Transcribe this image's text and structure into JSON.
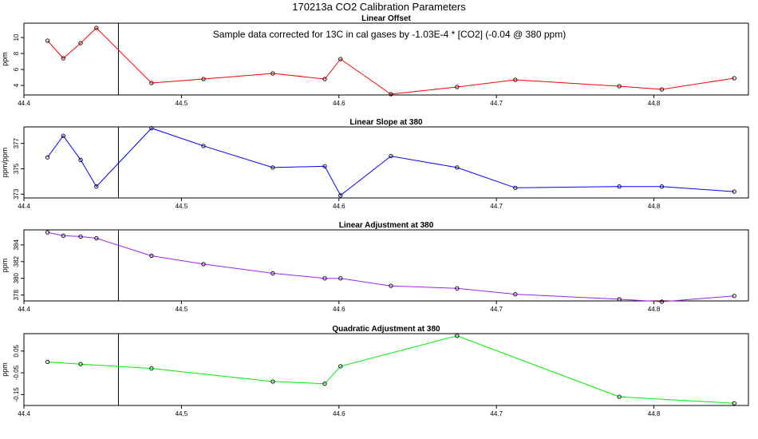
{
  "page": {
    "title": "170213a   CO2 Calibration Parameters",
    "note": "Sample data corrected for 13C in cal gases by -1.03E-4 * [CO2] (-0.04 @ 380 ppm)"
  },
  "chart_data": [
    {
      "type": "line",
      "title": "Linear Offset",
      "ylabel": "ppm",
      "color": "#ff0000",
      "xlim": [
        44.4,
        44.86
      ],
      "ylim": [
        2.8,
        11.8
      ],
      "xticks": [
        44.4,
        44.5,
        44.6,
        44.7,
        44.8
      ],
      "yticks": [
        4,
        6,
        8,
        10
      ],
      "vline": 44.46,
      "x": [
        44.415,
        44.425,
        44.436,
        44.446,
        44.481,
        44.514,
        44.558,
        44.591,
        44.601,
        44.633,
        44.675,
        44.712,
        44.778,
        44.805,
        44.851
      ],
      "y": [
        9.6,
        7.4,
        9.3,
        11.2,
        4.3,
        4.8,
        5.5,
        4.8,
        7.3,
        2.9,
        3.8,
        4.7,
        3.9,
        3.5,
        4.9
      ]
    },
    {
      "type": "line",
      "title": "Linear Slope at 380",
      "ylabel": "ppm/ppm",
      "color": "#0000ff",
      "xlim": [
        44.4,
        44.86
      ],
      "ylim": [
        372.7,
        378.3
      ],
      "xticks": [
        44.4,
        44.5,
        44.6,
        44.7,
        44.8
      ],
      "yticks": [
        373,
        375,
        377
      ],
      "vline": 44.46,
      "x": [
        44.415,
        44.425,
        44.436,
        44.446,
        44.481,
        44.514,
        44.558,
        44.591,
        44.601,
        44.633,
        44.675,
        44.712,
        44.778,
        44.805,
        44.851
      ],
      "y": [
        375.9,
        377.6,
        375.7,
        373.6,
        378.2,
        376.8,
        375.1,
        375.2,
        372.9,
        376.0,
        375.1,
        373.5,
        373.6,
        373.6,
        373.2
      ]
    },
    {
      "type": "line",
      "title": "Linear Adjustment at 380",
      "ylabel": "ppm",
      "color": "#a020f0",
      "xlim": [
        44.4,
        44.86
      ],
      "ylim": [
        377.3,
        385.8
      ],
      "xticks": [
        44.4,
        44.5,
        44.6,
        44.7,
        44.8
      ],
      "yticks": [
        378,
        380,
        382,
        384
      ],
      "vline": 44.46,
      "x": [
        44.415,
        44.425,
        44.436,
        44.446,
        44.481,
        44.514,
        44.558,
        44.591,
        44.601,
        44.633,
        44.675,
        44.712,
        44.778,
        44.805,
        44.851
      ],
      "y": [
        385.5,
        385.1,
        385.0,
        384.8,
        382.7,
        381.7,
        380.6,
        380.0,
        380.0,
        379.1,
        378.8,
        378.1,
        377.5,
        377.2,
        377.9
      ]
    },
    {
      "type": "line",
      "title": "Quadratic Adjustment at 380",
      "ylabel": "ppm",
      "color": "#00ee00",
      "xlim": [
        44.4,
        44.86
      ],
      "ylim": [
        -0.2,
        0.13
      ],
      "xticks": [
        44.4,
        44.5,
        44.6,
        44.7,
        44.8
      ],
      "yticks": [
        -0.15,
        -0.05,
        0.05
      ],
      "vline": 44.46,
      "x": [
        44.415,
        44.436,
        44.481,
        44.558,
        44.591,
        44.601,
        44.675,
        44.778,
        44.851
      ],
      "y": [
        0.0,
        -0.01,
        -0.03,
        -0.09,
        -0.1,
        -0.02,
        0.12,
        -0.16,
        -0.19
      ]
    }
  ]
}
